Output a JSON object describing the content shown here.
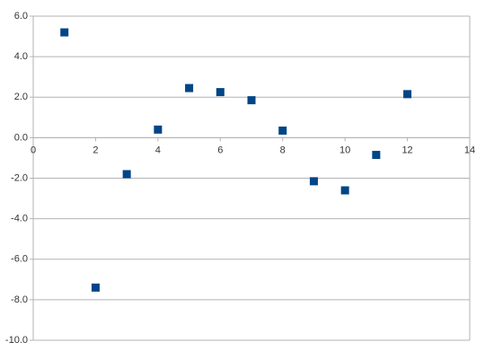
{
  "chart_data": {
    "type": "scatter",
    "series": [
      {
        "color": "#004586",
        "x": [
          1,
          2,
          3,
          4,
          5,
          6,
          7,
          8,
          9,
          10,
          11,
          12
        ],
        "values": [
          5.2,
          -7.4,
          -1.8,
          0.4,
          2.45,
          2.25,
          1.85,
          0.35,
          -2.15,
          -2.6,
          -0.85,
          2.15
        ]
      }
    ],
    "xlim": [
      0,
      14
    ],
    "xticks": [
      0,
      2,
      4,
      6,
      8,
      10,
      12,
      14
    ],
    "ylim": [
      -10,
      6
    ],
    "yticks": [
      {
        "value": 6,
        "label": "6.0"
      },
      {
        "value": 4,
        "label": "4.0"
      },
      {
        "value": 2,
        "label": "2.0"
      },
      {
        "value": 0,
        "label": "0.0"
      },
      {
        "value": -2,
        "label": "-2.0"
      },
      {
        "value": -4,
        "label": "-4.0"
      },
      {
        "value": -6,
        "label": "-6.0"
      },
      {
        "value": -8,
        "label": "-8.0"
      },
      {
        "value": -10,
        "label": "-10.0"
      }
    ],
    "grid": true
  }
}
